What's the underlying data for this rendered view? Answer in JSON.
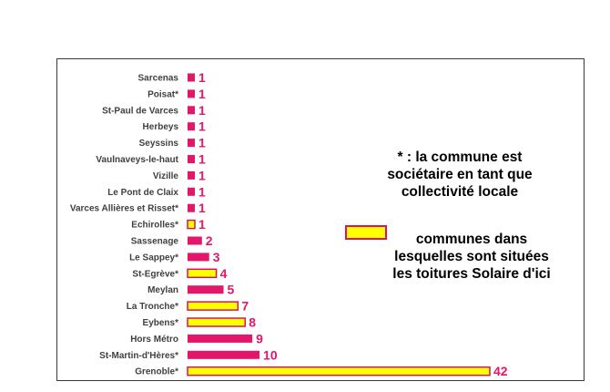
{
  "chart_data": {
    "type": "bar",
    "orientation": "horizontal",
    "categories": [
      "Sarcenas",
      "Poisat*",
      "St-Paul de Varces",
      "Herbeys",
      "Seyssins",
      "Vaulnaveys-le-haut",
      "Vizille",
      "Le Pont de Claix",
      "Varces Allières et Risset*",
      "Echirolles*",
      "Sassenage",
      "Le Sappey*",
      "St-Egrève*",
      "Meylan",
      "La Tronche*",
      "Eybens*",
      "Hors Métro",
      "St-Martin-d'Hères*",
      "Grenoble*"
    ],
    "values": [
      1,
      1,
      1,
      1,
      1,
      1,
      1,
      1,
      1,
      1,
      2,
      3,
      4,
      5,
      7,
      8,
      9,
      10,
      42
    ],
    "highlighted": [
      false,
      false,
      false,
      false,
      false,
      false,
      false,
      false,
      false,
      true,
      false,
      false,
      true,
      false,
      true,
      true,
      false,
      false,
      true
    ],
    "colors": {
      "bar": "#e2176a",
      "highlight_fill": "#ffff00",
      "highlight_border": "#d6145f",
      "value_label": "#e2176a"
    },
    "xlim": [
      0,
      42
    ],
    "grid": false,
    "legend_position": "right"
  },
  "annotations": {
    "asterisk_note": "* : la commune est sociétaire en tant que collectivité locale",
    "legend_note": "communes dans lesquelles sont situées les toitures Solaire d'ici"
  }
}
